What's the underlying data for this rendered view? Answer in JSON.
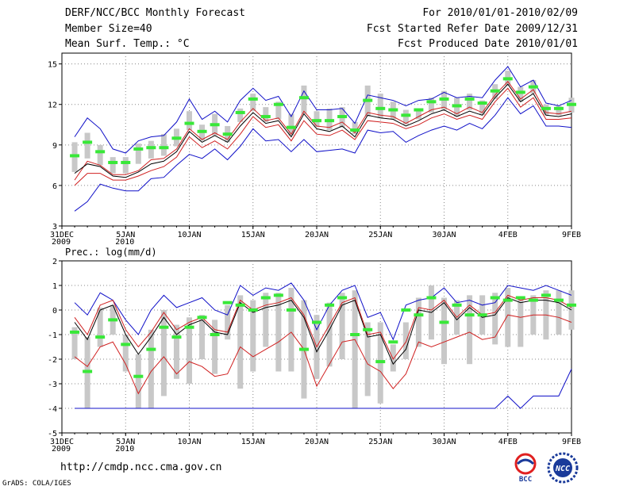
{
  "header": {
    "title": "DERF/NCC/BCC Monthly Forecast",
    "member_size": "Member Size=40",
    "variable": "Mean Surf. Temp.: °C",
    "for_range": "For 2010/01/01-2010/02/09",
    "fcst_started": "Fcst Started Refer Date 2009/12/31",
    "fcst_produced": "Fcst Produced Date 2010/01/01"
  },
  "footer": {
    "url": "http://cmdp.ncc.cma.gov.cn",
    "grads": "GrADS: COLA/IGES",
    "logo_bcc": "BCC",
    "logo_ncc": "NCC"
  },
  "colors": {
    "max_min": "#1010c8",
    "percentile": "#d02020",
    "median": "#000000",
    "box": "#c8c8c8",
    "observed": "#38e838"
  },
  "chart_data": [
    {
      "type": "line",
      "title": "Mean Surf. Temp.: °C",
      "x_ticks": [
        "31DEC\n2009",
        "5JAN\n2010",
        "10JAN",
        "15JAN",
        "20JAN",
        "25JAN",
        "30JAN",
        "4FEB",
        "9FEB"
      ],
      "x_tick_days": [
        0,
        5,
        10,
        15,
        20,
        25,
        30,
        35,
        40
      ],
      "ylim": [
        3,
        15.8
      ],
      "yticks": [
        3,
        6,
        9,
        12,
        15
      ],
      "grid": true,
      "days": [
        1,
        2,
        3,
        4,
        5,
        6,
        7,
        8,
        9,
        10,
        11,
        12,
        13,
        14,
        15,
        16,
        17,
        18,
        19,
        20,
        21,
        22,
        23,
        24,
        25,
        26,
        27,
        28,
        29,
        30,
        31,
        32,
        33,
        34,
        35,
        36,
        37,
        38,
        39,
        40
      ],
      "series": [
        {
          "name": "max",
          "values": [
            9.6,
            11.0,
            10.2,
            8.7,
            8.4,
            9.3,
            9.6,
            9.7,
            10.7,
            12.4,
            10.9,
            11.5,
            10.7,
            12.3,
            13.2,
            12.3,
            12.6,
            11.1,
            13.0,
            11.6,
            11.6,
            11.7,
            10.6,
            12.7,
            12.5,
            12.3,
            11.9,
            12.3,
            12.4,
            12.9,
            12.5,
            12.6,
            12.5,
            13.8,
            14.8,
            13.3,
            13.8,
            12.1,
            11.9,
            12.3
          ]
        },
        {
          "name": "upper",
          "values": [
            6.4,
            7.8,
            7.5,
            6.8,
            6.8,
            7.1,
            7.9,
            8.0,
            8.7,
            10.2,
            9.4,
            9.9,
            9.4,
            10.7,
            11.7,
            10.8,
            11.0,
            9.8,
            11.5,
            10.4,
            10.3,
            10.7,
            9.9,
            11.4,
            11.2,
            11.1,
            10.6,
            11.1,
            11.6,
            11.8,
            11.3,
            11.8,
            11.4,
            12.7,
            13.7,
            12.4,
            13.1,
            11.4,
            11.3,
            11.5
          ]
        },
        {
          "name": "median",
          "values": [
            6.9,
            7.6,
            7.4,
            6.7,
            6.6,
            7.0,
            7.6,
            7.8,
            8.5,
            10.0,
            9.2,
            9.7,
            9.2,
            10.4,
            11.4,
            10.6,
            10.8,
            9.6,
            11.3,
            10.2,
            10.0,
            10.4,
            9.6,
            11.2,
            11.0,
            10.9,
            10.4,
            10.8,
            11.3,
            11.6,
            11.1,
            11.5,
            11.2,
            12.5,
            13.5,
            12.2,
            12.8,
            11.2,
            11.1,
            11.3
          ]
        },
        {
          "name": "lower",
          "values": [
            6.0,
            6.9,
            6.9,
            6.4,
            6.4,
            6.7,
            7.1,
            7.4,
            8.1,
            9.6,
            8.8,
            9.3,
            8.7,
            9.8,
            11.1,
            10.3,
            10.5,
            9.3,
            10.8,
            9.8,
            9.7,
            10.1,
            9.4,
            10.8,
            10.7,
            10.6,
            10.2,
            10.5,
            11.0,
            11.3,
            10.9,
            11.2,
            10.9,
            12.2,
            13.2,
            11.8,
            12.5,
            10.9,
            10.9,
            11.0
          ]
        },
        {
          "name": "min",
          "values": [
            4.1,
            4.8,
            6.1,
            5.8,
            5.6,
            5.6,
            6.5,
            6.6,
            7.5,
            8.3,
            8.0,
            8.7,
            7.9,
            8.9,
            10.2,
            9.3,
            9.4,
            8.5,
            9.4,
            8.5,
            8.6,
            8.7,
            8.4,
            10.1,
            9.9,
            10.0,
            9.2,
            9.7,
            10.1,
            10.4,
            10.1,
            10.6,
            10.2,
            11.2,
            12.5,
            11.3,
            11.9,
            10.4,
            10.4,
            10.3
          ]
        },
        {
          "name": "observed",
          "values": [
            8.2,
            9.2,
            8.5,
            7.7,
            7.7,
            8.7,
            8.8,
            8.8,
            9.5,
            10.6,
            10.0,
            10.5,
            9.8,
            11.4,
            12.4,
            11.1,
            12.0,
            10.3,
            12.5,
            10.8,
            10.8,
            11.1,
            10.1,
            12.3,
            11.7,
            11.6,
            11.2,
            11.6,
            12.2,
            12.4,
            11.9,
            12.4,
            12.1,
            13.0,
            13.9,
            12.9,
            13.3,
            11.7,
            11.7,
            12.0
          ]
        }
      ],
      "boxes": {
        "low": [
          7.0,
          8.0,
          7.5,
          6.9,
          6.9,
          7.6,
          8.0,
          8.2,
          8.9,
          10.1,
          9.3,
          9.7,
          9.2,
          10.7,
          11.5,
          10.7,
          10.9,
          9.7,
          11.3,
          10.3,
          10.1,
          10.3,
          9.8,
          11.1,
          11.0,
          10.9,
          10.5,
          10.9,
          11.4,
          11.6,
          11.1,
          11.6,
          11.2,
          12.4,
          13.4,
          12.2,
          12.8,
          11.2,
          11.2,
          11.4
        ],
        "high": [
          9.2,
          9.9,
          9.0,
          8.1,
          8.1,
          9.1,
          9.3,
          9.8,
          10.2,
          11.5,
          10.5,
          11.3,
          10.4,
          11.7,
          12.8,
          11.8,
          12.2,
          11.3,
          13.4,
          11.5,
          11.7,
          11.8,
          10.7,
          13.4,
          12.8,
          12.2,
          11.6,
          11.6,
          12.5,
          13.0,
          12.5,
          12.8,
          12.3,
          13.5,
          14.5,
          13.3,
          13.8,
          12.0,
          11.9,
          12.5
        ]
      }
    },
    {
      "type": "line",
      "title": "Prec.: log(mm/d)",
      "x_ticks": [
        "31DEC\n2009",
        "5JAN\n2010",
        "10JAN",
        "15JAN",
        "20JAN",
        "25JAN",
        "30JAN",
        "4FEB",
        "9FEB"
      ],
      "x_tick_days": [
        0,
        5,
        10,
        15,
        20,
        25,
        30,
        35,
        40
      ],
      "ylim": [
        -5,
        2
      ],
      "yticks": [
        -5,
        -4,
        -3,
        -2,
        -1,
        0,
        1,
        2
      ],
      "grid": true,
      "days": [
        1,
        2,
        3,
        4,
        5,
        6,
        7,
        8,
        9,
        10,
        11,
        12,
        13,
        14,
        15,
        16,
        17,
        18,
        19,
        20,
        21,
        22,
        23,
        24,
        25,
        26,
        27,
        28,
        29,
        30,
        31,
        32,
        33,
        34,
        35,
        36,
        37,
        38,
        39,
        40
      ],
      "series": [
        {
          "name": "max",
          "values": [
            0.3,
            -0.2,
            0.7,
            0.4,
            -0.4,
            -1.0,
            0.0,
            0.6,
            0.1,
            0.3,
            0.5,
            0.0,
            -0.2,
            1.0,
            0.6,
            0.9,
            0.8,
            1.1,
            0.4,
            -0.8,
            0.2,
            0.8,
            1.0,
            -0.3,
            -0.1,
            -1.2,
            0.2,
            0.4,
            0.5,
            0.9,
            0.3,
            0.4,
            0.2,
            0.3,
            1.0,
            0.9,
            0.8,
            1.0,
            0.8,
            0.6
          ]
        },
        {
          "name": "median",
          "values": [
            -0.5,
            -1.2,
            0.0,
            0.2,
            -1.0,
            -1.8,
            -1.1,
            -0.3,
            -1.0,
            -0.6,
            -0.4,
            -0.9,
            -1.0,
            0.3,
            -0.1,
            0.1,
            0.2,
            0.4,
            -0.3,
            -1.7,
            -0.8,
            0.2,
            0.4,
            -1.1,
            -1.0,
            -2.2,
            -1.6,
            0.0,
            -0.1,
            0.3,
            -0.4,
            0.1,
            -0.3,
            -0.2,
            0.5,
            0.3,
            0.4,
            0.4,
            0.3,
            0.0
          ]
        },
        {
          "name": "upper",
          "values": [
            -0.3,
            -1.0,
            0.2,
            0.4,
            -0.8,
            -1.5,
            -0.9,
            -0.1,
            -0.8,
            -0.5,
            -0.3,
            -0.8,
            -0.9,
            0.4,
            0.0,
            0.2,
            0.3,
            0.5,
            -0.2,
            -1.5,
            -0.6,
            0.3,
            0.5,
            -1.0,
            -0.9,
            -2.0,
            -1.3,
            0.1,
            0.0,
            0.4,
            -0.3,
            0.2,
            -0.2,
            -0.1,
            0.6,
            0.4,
            0.5,
            0.5,
            0.4,
            0.1
          ]
        },
        {
          "name": "lower",
          "values": [
            -1.9,
            -2.3,
            -1.5,
            -1.3,
            -2.2,
            -3.4,
            -2.5,
            -1.9,
            -2.6,
            -2.1,
            -2.3,
            -2.7,
            -2.6,
            -1.5,
            -1.9,
            -1.6,
            -1.3,
            -0.9,
            -1.6,
            -3.1,
            -2.2,
            -1.3,
            -1.2,
            -2.2,
            -2.5,
            -3.2,
            -2.6,
            -1.3,
            -1.5,
            -1.3,
            -1.1,
            -0.9,
            -1.2,
            -1.1,
            -0.2,
            -0.3,
            -0.2,
            -0.2,
            -0.3,
            -0.5
          ]
        },
        {
          "name": "min",
          "values": [
            -4,
            -4,
            -4,
            -4,
            -4,
            -4,
            -4,
            -4,
            -4,
            -4,
            -4,
            -4,
            -4,
            -4,
            -4,
            -4,
            -4,
            -4,
            -4,
            -4,
            -4,
            -4,
            -4,
            -4,
            -4,
            -4,
            -4,
            -4,
            -4,
            -4,
            -4,
            -4,
            -4,
            -4,
            -3.5,
            -4.0,
            -3.5,
            -3.5,
            -3.5,
            -2.4
          ]
        },
        {
          "name": "observed",
          "values": [
            -0.9,
            -2.5,
            -1.1,
            -0.4,
            -1.4,
            -2.7,
            -1.6,
            -0.7,
            -1.1,
            -0.7,
            -0.3,
            -1.0,
            0.3,
            0.2,
            0.0,
            0.5,
            0.6,
            0.0,
            -1.6,
            -0.5,
            0.2,
            0.5,
            -1.0,
            -0.8,
            -2.1,
            -1.3,
            0.0,
            -0.2,
            0.5,
            -0.5,
            0.2,
            -0.2,
            -0.2,
            0.5,
            0.4,
            0.5,
            0.4,
            0.6,
            0.4,
            0.2
          ]
        }
      ],
      "boxes": {
        "low": [
          -2.0,
          -4.0,
          -1.5,
          -1.0,
          -2.5,
          -4.0,
          -4.0,
          -3.5,
          -2.8,
          -3.0,
          -2.0,
          -2.6,
          -1.2,
          -3.2,
          -2.5,
          -1.5,
          -2.5,
          -2.5,
          -3.6,
          -2.8,
          -2.3,
          -2.0,
          -4.0,
          -3.5,
          -3.8,
          -2.5,
          -2.0,
          -1.5,
          -1.2,
          -2.2,
          -1.0,
          -2.2,
          -1.0,
          -1.4,
          -1.5,
          -1.5,
          -1.0,
          -1.2,
          -1.0,
          -0.8
        ],
        "high": [
          -0.7,
          -1.1,
          0.1,
          0.2,
          -1.0,
          -1.8,
          -0.8,
          0.0,
          -0.6,
          -0.3,
          -0.2,
          -0.4,
          0.2,
          0.6,
          0.4,
          0.7,
          0.7,
          0.9,
          0.4,
          -0.2,
          0.3,
          0.7,
          0.8,
          -0.5,
          -0.5,
          -1.4,
          -0.5,
          0.5,
          1.0,
          0.5,
          0.4,
          0.6,
          0.6,
          0.7,
          0.9,
          0.5,
          0.6,
          0.8,
          0.8,
          0.8
        ]
      }
    }
  ]
}
